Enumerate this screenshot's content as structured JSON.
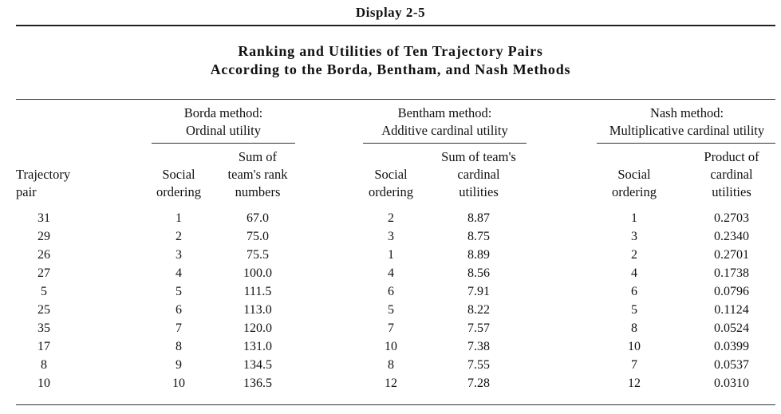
{
  "display_label": "Display 2-5",
  "title": {
    "line1": "Ranking and Utilities of Ten Trajectory Pairs",
    "line2": "According to the Borda, Bentham, and Nash Methods"
  },
  "groups": {
    "borda": {
      "line1": "Borda method:",
      "line2": "Ordinal utility"
    },
    "bentham": {
      "line1": "Bentham method:",
      "line2": "Additive cardinal utility"
    },
    "nash": {
      "line1": "Nash method:",
      "line2": "Multiplicative cardinal utility"
    }
  },
  "columns": {
    "pair": {
      "line1": "Trajectory",
      "line2": "pair"
    },
    "borda_order": {
      "line1": "Social",
      "line2": "ordering"
    },
    "borda_sum": {
      "line1": "Sum of",
      "line2": "team's rank",
      "line3": "numbers"
    },
    "bentham_order": {
      "line1": "Social",
      "line2": "ordering"
    },
    "bentham_sum": {
      "line1": "Sum of team's",
      "line2": "cardinal",
      "line3": "utilities"
    },
    "nash_order": {
      "line1": "Social",
      "line2": "ordering"
    },
    "nash_prod": {
      "line1": "Product of",
      "line2": "cardinal",
      "line3": "utilities"
    }
  },
  "rows": [
    {
      "pair": "31",
      "borda_order": "1",
      "borda_sum": "67.0",
      "bentham_order": "2",
      "bentham_sum": "8.87",
      "nash_order": "1",
      "nash_prod": "0.2703"
    },
    {
      "pair": "29",
      "borda_order": "2",
      "borda_sum": "75.0",
      "bentham_order": "3",
      "bentham_sum": "8.75",
      "nash_order": "3",
      "nash_prod": "0.2340"
    },
    {
      "pair": "26",
      "borda_order": "3",
      "borda_sum": "75.5",
      "bentham_order": "1",
      "bentham_sum": "8.89",
      "nash_order": "2",
      "nash_prod": "0.2701"
    },
    {
      "pair": "27",
      "borda_order": "4",
      "borda_sum": "100.0",
      "bentham_order": "4",
      "bentham_sum": "8.56",
      "nash_order": "4",
      "nash_prod": "0.1738"
    },
    {
      "pair": "5",
      "borda_order": "5",
      "borda_sum": "111.5",
      "bentham_order": "6",
      "bentham_sum": "7.91",
      "nash_order": "6",
      "nash_prod": "0.0796"
    },
    {
      "pair": "25",
      "borda_order": "6",
      "borda_sum": "113.0",
      "bentham_order": "5",
      "bentham_sum": "8.22",
      "nash_order": "5",
      "nash_prod": "0.1124"
    },
    {
      "pair": "35",
      "borda_order": "7",
      "borda_sum": "120.0",
      "bentham_order": "7",
      "bentham_sum": "7.57",
      "nash_order": "8",
      "nash_prod": "0.0524"
    },
    {
      "pair": "17",
      "borda_order": "8",
      "borda_sum": "131.0",
      "bentham_order": "10",
      "bentham_sum": "7.38",
      "nash_order": "10",
      "nash_prod": "0.0399"
    },
    {
      "pair": "8",
      "borda_order": "9",
      "borda_sum": "134.5",
      "bentham_order": "8",
      "bentham_sum": "7.55",
      "nash_order": "7",
      "nash_prod": "0.0537"
    },
    {
      "pair": "10",
      "borda_order": "10",
      "borda_sum": "136.5",
      "bentham_order": "12",
      "bentham_sum": "7.28",
      "nash_order": "12",
      "nash_prod": "0.0310"
    }
  ]
}
